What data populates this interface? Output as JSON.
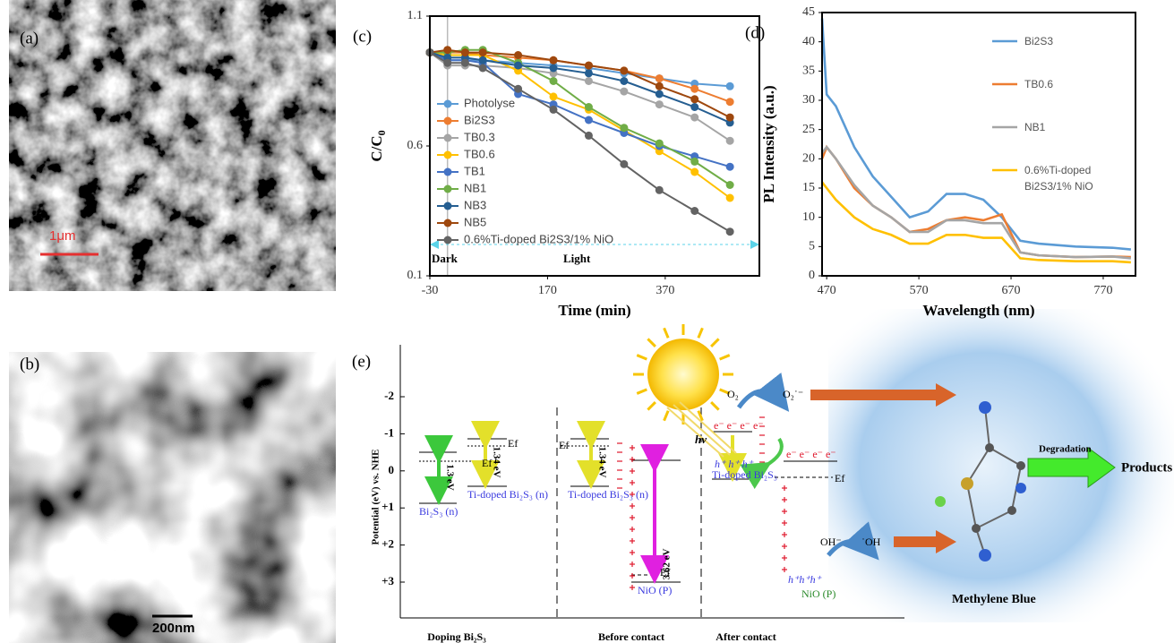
{
  "panels": {
    "a": {
      "label": "(a)",
      "scale": "1μm"
    },
    "b": {
      "label": "(b)",
      "scale": "200nm"
    }
  },
  "chart_data": [
    {
      "type": "line",
      "label": "(c)",
      "x_label": "Time (min)",
      "y_label": "C/C",
      "y_label_subscript": "0",
      "x": [
        -30,
        0,
        30,
        60,
        120,
        180,
        240,
        300,
        360,
        420,
        480
      ],
      "xlim": [
        -30,
        530
      ],
      "xticks": [
        -30,
        170,
        370
      ],
      "ylim": [
        0.1,
        1.1
      ],
      "yticks": [
        0.1,
        0.6,
        1.1
      ],
      "markers": true,
      "legend": "left",
      "annotations": [
        "Dark",
        "Light"
      ],
      "series": [
        {
          "name": "Photolyse",
          "color": "#5b9bd5",
          "values": [
            0.96,
            0.93,
            0.93,
            0.93,
            0.92,
            0.91,
            0.9,
            0.88,
            0.86,
            0.84,
            0.83
          ]
        },
        {
          "name": "Bi2S3",
          "color": "#ed7d31",
          "values": [
            0.96,
            0.96,
            0.96,
            0.95,
            0.94,
            0.93,
            0.91,
            0.89,
            0.86,
            0.82,
            0.77
          ]
        },
        {
          "name": "TB0.3",
          "color": "#a5a5a5",
          "values": [
            0.96,
            0.91,
            0.91,
            0.91,
            0.9,
            0.88,
            0.85,
            0.81,
            0.76,
            0.71,
            0.62
          ]
        },
        {
          "name": "TB0.6",
          "color": "#ffc000",
          "values": [
            0.96,
            0.95,
            0.95,
            0.95,
            0.89,
            0.79,
            0.74,
            0.66,
            0.58,
            0.5,
            0.4
          ]
        },
        {
          "name": "TB1",
          "color": "#4472c4",
          "values": [
            0.96,
            0.93,
            0.93,
            0.92,
            0.8,
            0.76,
            0.7,
            0.65,
            0.6,
            0.56,
            0.52
          ]
        },
        {
          "name": "NB1",
          "color": "#70ad47",
          "values": [
            0.96,
            0.96,
            0.97,
            0.97,
            0.92,
            0.85,
            0.75,
            0.67,
            0.61,
            0.54,
            0.45
          ]
        },
        {
          "name": "NB3",
          "color": "#255e91",
          "values": [
            0.96,
            0.94,
            0.94,
            0.93,
            0.91,
            0.9,
            0.88,
            0.85,
            0.8,
            0.75,
            0.69
          ]
        },
        {
          "name": "NB5",
          "color": "#9e480e",
          "values": [
            0.96,
            0.97,
            0.96,
            0.96,
            0.95,
            0.93,
            0.91,
            0.89,
            0.83,
            0.78,
            0.71
          ]
        },
        {
          "name": "0.6%Ti-doped Bi2S3/1% NiO",
          "color": "#636363",
          "values": [
            0.96,
            0.92,
            0.92,
            0.9,
            0.82,
            0.74,
            0.64,
            0.53,
            0.43,
            0.35,
            0.27
          ]
        }
      ]
    },
    {
      "type": "line",
      "label": "(d)",
      "x_label": "Wavelength (nm)",
      "y_label": "PL Intensity (a.u.)",
      "x": [
        465,
        470,
        480,
        500,
        520,
        540,
        560,
        580,
        600,
        620,
        640,
        660,
        680,
        700,
        740,
        780,
        800
      ],
      "xlim": [
        465,
        805
      ],
      "xticks": [
        470,
        570,
        670,
        770
      ],
      "ylim": [
        0,
        45
      ],
      "yticks": [
        0,
        5,
        10,
        15,
        20,
        25,
        30,
        35,
        40,
        45
      ],
      "markers": false,
      "legend": "right",
      "series": [
        {
          "name": "Bi2S3",
          "color": "#5b9bd5",
          "values": [
            44,
            31,
            29,
            22,
            17,
            13.5,
            10,
            11,
            14,
            14,
            13,
            10,
            6,
            5.5,
            5,
            4.8,
            4.5
          ]
        },
        {
          "name": "TB0.6",
          "color": "#ed7d31",
          "values": [
            20,
            22,
            20,
            15,
            12,
            10,
            7.5,
            8,
            9.5,
            10,
            9.5,
            10.5,
            4,
            3.5,
            3.2,
            3.3,
            3.2
          ]
        },
        {
          "name": "NB1",
          "color": "#a5a5a5",
          "values": [
            21,
            22,
            20,
            15.5,
            12,
            10,
            7.5,
            7.5,
            9.5,
            9.5,
            9,
            9,
            4,
            3.5,
            3.2,
            3.3,
            3
          ]
        },
        {
          "name": "0.6%Ti-doped Bi2S3/1% NiO",
          "color": "#ffc000",
          "values": [
            16,
            15,
            13,
            10,
            8,
            7,
            5.5,
            5.5,
            7,
            7,
            6.5,
            6.5,
            3,
            2.7,
            2.5,
            2.5,
            2.3
          ]
        }
      ]
    }
  ],
  "diagram": {
    "label": "(e)",
    "y_label": "Potential (eV) vs. NHE",
    "y_ticks": [
      "-2",
      "-1",
      "0",
      "+1",
      "+2",
      "+3"
    ],
    "sections": [
      "Doping Bi₂S₃",
      "Before contact",
      "After contact"
    ],
    "texts": [
      "Ef",
      "1.3 eV",
      "Bi₂S₃ (n)",
      "Ef",
      "1.34 eV",
      "Ti-doped Bi₂S₃ (n)",
      "Ef",
      "1.34 eV",
      "Ti-doped Bi₂S₃ (n)",
      "3.62 eV",
      "Ef",
      "NiO (P)",
      "hv",
      "e⁻ e⁻ e⁻ e⁻",
      "h⁺ h⁺ h⁺",
      "Ti-doped Bi₂S₃",
      "e⁻ e⁻ e⁻ e⁻",
      "Ef",
      "O₂",
      "O₂˙⁻",
      "OH⁻",
      "˙OH",
      "h⁺h⁺h⁺",
      "NiO (P)",
      "Degradation",
      "Products",
      "Methylene Blue"
    ]
  }
}
